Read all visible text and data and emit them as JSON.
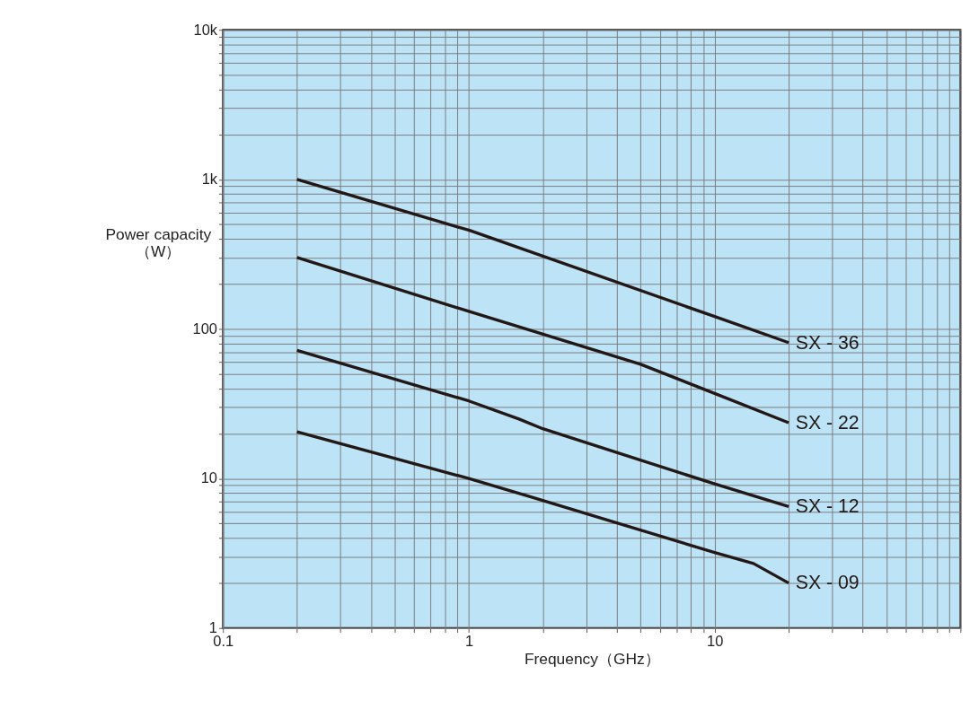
{
  "chart_data": {
    "type": "line",
    "xlabel": "Frequency（GHz）",
    "ylabel": "Power capacity\n（W）",
    "log": "xy",
    "grid": true,
    "legend": false,
    "marker": "none",
    "line_style": "solid",
    "xlim": [
      0.1,
      100
    ],
    "ylim": [
      1,
      10000
    ],
    "xticks": [
      0.1,
      {
        "value": 0.2,
        "label": null
      },
      {
        "value": 0.3,
        "label": null
      },
      {
        "value": 0.4,
        "label": null
      },
      {
        "value": 0.5,
        "label": null
      },
      {
        "value": 0.6,
        "label": null
      },
      {
        "value": 0.7,
        "label": null
      },
      {
        "value": 0.8,
        "label": null
      },
      {
        "value": 0.9,
        "label": null
      },
      1,
      {
        "value": 2,
        "label": null
      },
      {
        "value": 3,
        "label": null
      },
      {
        "value": 4,
        "label": null
      },
      {
        "value": 5,
        "label": null
      },
      {
        "value": 6,
        "label": null
      },
      {
        "value": 7,
        "label": null
      },
      {
        "value": 8,
        "label": null
      },
      {
        "value": 9,
        "label": null
      },
      10,
      {
        "value": 20,
        "label": null
      },
      {
        "value": 30,
        "label": null
      },
      {
        "value": 40,
        "label": null
      },
      {
        "value": 50,
        "label": null
      },
      {
        "value": 60,
        "label": null
      },
      {
        "value": 70,
        "label": null
      },
      {
        "value": 80,
        "label": null
      },
      {
        "value": 90,
        "label": null
      },
      {
        "value": 100,
        "label": null
      }
    ],
    "yticks": [
      1,
      {
        "value": 2,
        "label": null
      },
      {
        "value": 3,
        "label": null
      },
      {
        "value": 4,
        "label": null
      },
      {
        "value": 5,
        "label": null
      },
      {
        "value": 6,
        "label": null
      },
      {
        "value": 7,
        "label": null
      },
      {
        "value": 8,
        "label": null
      },
      {
        "value": 9,
        "label": null
      },
      10,
      {
        "value": 20,
        "label": null
      },
      {
        "value": 30,
        "label": null
      },
      {
        "value": 40,
        "label": null
      },
      {
        "value": 50,
        "label": null
      },
      {
        "value": 60,
        "label": null
      },
      {
        "value": 70,
        "label": null
      },
      {
        "value": 80,
        "label": null
      },
      {
        "value": 90,
        "label": null
      },
      100,
      {
        "value": 200,
        "label": null
      },
      {
        "value": 300,
        "label": null
      },
      {
        "value": 400,
        "label": null
      },
      {
        "value": 500,
        "label": null
      },
      {
        "value": 600,
        "label": null
      },
      {
        "value": 700,
        "label": null
      },
      {
        "value": 800,
        "label": null
      },
      {
        "value": 900,
        "label": null
      },
      {
        "value": 1000,
        "label": "1k"
      },
      {
        "value": 2000,
        "label": null
      },
      {
        "value": 3000,
        "label": null
      },
      {
        "value": 4000,
        "label": null
      },
      {
        "value": 5000,
        "label": null
      },
      {
        "value": 6000,
        "label": null
      },
      {
        "value": 7000,
        "label": null
      },
      {
        "value": 8000,
        "label": null
      },
      {
        "value": 9000,
        "label": null
      },
      {
        "value": 10000,
        "label": "10k"
      }
    ],
    "series": [
      {
        "name": "SX - 36",
        "color": "#231815",
        "x": [
          0.2,
          0.9,
          1,
          10,
          20
        ],
        "values": [
          1000,
          480,
          458,
          121,
          81
        ]
      },
      {
        "name": "SX - 22",
        "color": "#231815",
        "x": [
          0.2,
          1,
          5,
          10,
          20
        ],
        "values": [
          300,
          131,
          58,
          37,
          23.6
        ]
      },
      {
        "name": "SX - 12",
        "color": "#231815",
        "x": [
          0.2,
          1,
          1.6,
          2,
          10,
          20
        ],
        "values": [
          72,
          33,
          25,
          21.5,
          9.2,
          6.5
        ]
      },
      {
        "name": "SX - 09",
        "color": "#231815",
        "x": [
          0.2,
          1,
          1.8,
          10,
          14.4,
          20
        ],
        "values": [
          20.5,
          10,
          7.5,
          3.2,
          2.7,
          2.0
        ]
      }
    ]
  }
}
